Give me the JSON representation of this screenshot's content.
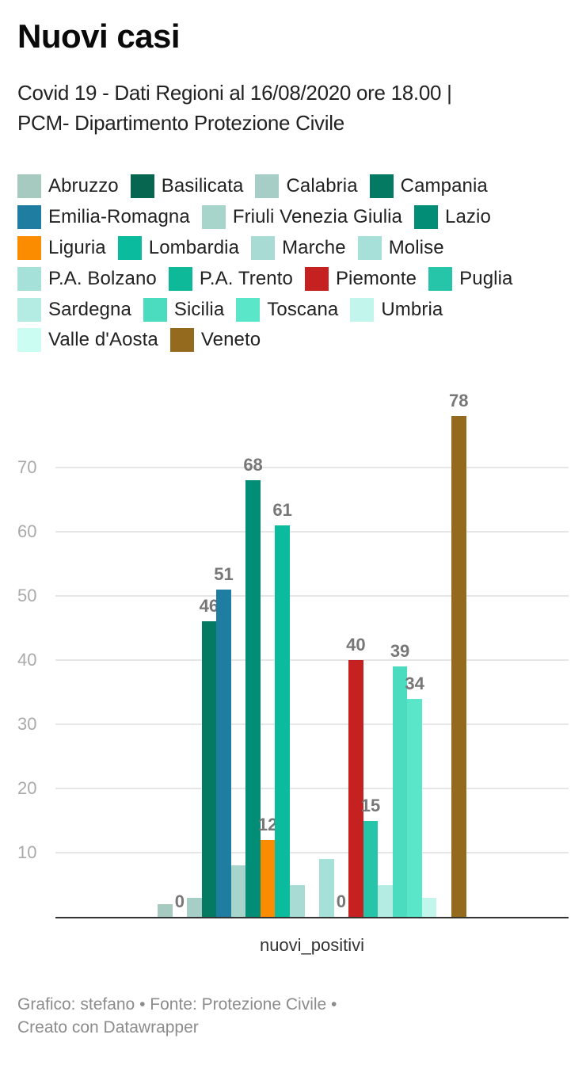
{
  "header": {
    "title": "Nuovi casi",
    "subtitle_line1": "Covid 19 - Dati Regioni al 16/08/2020 ore 18.00 |",
    "subtitle_line2": "PCM- Dipartimento Protezione Civile"
  },
  "legend": {
    "rows": [
      [
        {
          "label": "Abruzzo",
          "color": "#a6c9c0"
        },
        {
          "label": "Basilicata",
          "color": "#066650"
        },
        {
          "label": "Calabria",
          "color": "#a6cdc6"
        },
        {
          "label": "Campania",
          "color": "#057a62"
        }
      ],
      [
        {
          "label": "Emilia-Romagna",
          "color": "#1e7da0"
        },
        {
          "label": "Friuli Venezia Giulia",
          "color": "#a7d5cc"
        },
        {
          "label": "Lazio",
          "color": "#028e76"
        }
      ],
      [
        {
          "label": "Liguria",
          "color": "#fb8c00"
        },
        {
          "label": "Lombardia",
          "color": "#0bbb9d"
        },
        {
          "label": "Marche",
          "color": "#a8dbd3"
        },
        {
          "label": "Molise",
          "color": "#a6e0d8"
        }
      ],
      [
        {
          "label": "P.A. Bolzano",
          "color": "#a5e0d9"
        },
        {
          "label": "P.A. Trento",
          "color": "#0eb99a"
        },
        {
          "label": "Piemonte",
          "color": "#c62121"
        },
        {
          "label": "Puglia",
          "color": "#26c5aa"
        }
      ],
      [
        {
          "label": "Sardegna",
          "color": "#b4ebe2"
        },
        {
          "label": "Sicilia",
          "color": "#4bdcbf"
        },
        {
          "label": "Toscana",
          "color": "#5ae6c9"
        },
        {
          "label": "Umbria",
          "color": "#c2f6ec"
        }
      ],
      [
        {
          "label": "Valle d'Aosta",
          "color": "#ccfdf2"
        },
        {
          "label": "Veneto",
          "color": "#946a1e"
        }
      ]
    ]
  },
  "chart_data": {
    "type": "bar",
    "title": "Nuovi casi",
    "subtitle": "Covid 19 - Dati Regioni al 16/08/2020 ore 18.00 | PCM- Dipartimento Protezione Civile",
    "xlabel": "nuovi_positivi",
    "ylabel": "",
    "categories": [
      "nuovi_positivi"
    ],
    "ylim": [
      0,
      80
    ],
    "yticks": [
      10,
      20,
      30,
      40,
      50,
      60,
      70
    ],
    "grid": true,
    "legend_position": "top",
    "series": [
      {
        "name": "Abruzzo",
        "values": [
          2
        ],
        "color": "#a6c9c0",
        "label": ""
      },
      {
        "name": "Basilicata",
        "values": [
          0
        ],
        "color": "#066650",
        "label": "0"
      },
      {
        "name": "Calabria",
        "values": [
          3
        ],
        "color": "#a6cdc6",
        "label": ""
      },
      {
        "name": "Campania",
        "values": [
          46
        ],
        "color": "#057a62",
        "label": "46"
      },
      {
        "name": "Emilia-Romagna",
        "values": [
          51
        ],
        "color": "#1e7da0",
        "label": "51"
      },
      {
        "name": "Friuli Venezia Giulia",
        "values": [
          8
        ],
        "color": "#a7d5cc",
        "label": ""
      },
      {
        "name": "Lazio",
        "values": [
          68
        ],
        "color": "#028e76",
        "label": "68"
      },
      {
        "name": "Liguria",
        "values": [
          12
        ],
        "color": "#fb8c00",
        "label": "12"
      },
      {
        "name": "Lombardia",
        "values": [
          61
        ],
        "color": "#0bbb9d",
        "label": "61"
      },
      {
        "name": "Marche",
        "values": [
          5
        ],
        "color": "#a8dbd3",
        "label": ""
      },
      {
        "name": "Molise",
        "values": [
          0
        ],
        "color": "#a6e0d8",
        "label": ""
      },
      {
        "name": "P.A. Bolzano",
        "values": [
          9
        ],
        "color": "#a5e0d9",
        "label": ""
      },
      {
        "name": "P.A. Trento",
        "values": [
          0
        ],
        "color": "#0eb99a",
        "label": "0"
      },
      {
        "name": "Piemonte",
        "values": [
          40
        ],
        "color": "#c62121",
        "label": "40"
      },
      {
        "name": "Puglia",
        "values": [
          15
        ],
        "color": "#26c5aa",
        "label": "15"
      },
      {
        "name": "Sardegna",
        "values": [
          5
        ],
        "color": "#b4ebe2",
        "label": ""
      },
      {
        "name": "Sicilia",
        "values": [
          39
        ],
        "color": "#4bdcbf",
        "label": "39"
      },
      {
        "name": "Toscana",
        "values": [
          34
        ],
        "color": "#5ae6c9",
        "label": "34"
      },
      {
        "name": "Umbria",
        "values": [
          3
        ],
        "color": "#c2f6ec",
        "label": ""
      },
      {
        "name": "Valle d'Aosta",
        "values": [
          0
        ],
        "color": "#ccfdf2",
        "label": ""
      },
      {
        "name": "Veneto",
        "values": [
          78
        ],
        "color": "#946a1e",
        "label": "78"
      }
    ]
  },
  "footer": {
    "line1": "Grafico: stefano • Fonte: Protezione Civile •",
    "line2": "Creato con Datawrapper"
  }
}
